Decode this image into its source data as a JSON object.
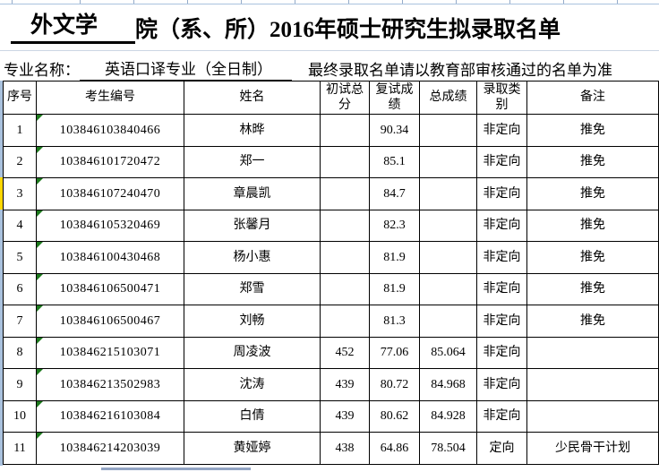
{
  "colors": {
    "grid_black": "#000000",
    "sheet_gridline_blue": "#aac2de",
    "error_indicator_green": "#1d7a1d",
    "left_marker_yellow": "#ffd800",
    "next_row_sliver": "#93a5c4"
  },
  "title": {
    "school_blank": "外文学",
    "rest": "院（系、所）2016年硕士研究生拟录取名单"
  },
  "subtitle": {
    "label": "专业名称：",
    "major": "英语口译专业（全日制）",
    "notice": "最终录取名单请以教育部审核通过的名单为准"
  },
  "table": {
    "headers": {
      "seq": "序号",
      "candidate_no": "考生编号",
      "name": "姓名",
      "initial_score": "初试总分",
      "retest_score": "复试成绩",
      "total_score": "总成绩",
      "admission_category": "录取类别",
      "note": "备注"
    },
    "rows": [
      {
        "seq": "1",
        "no": "103846103840466",
        "name": "林晔",
        "initial": "",
        "retest": "90.34",
        "total": "",
        "category": "非定向",
        "note": "推免"
      },
      {
        "seq": "2",
        "no": "103846101720472",
        "name": "郑一",
        "initial": "",
        "retest": "85.1",
        "total": "",
        "category": "非定向",
        "note": "推免"
      },
      {
        "seq": "3",
        "no": "103846107240470",
        "name": "章晨凯",
        "initial": "",
        "retest": "84.7",
        "total": "",
        "category": "非定向",
        "note": "推免"
      },
      {
        "seq": "4",
        "no": "103846105320469",
        "name": "张馨月",
        "initial": "",
        "retest": "82.3",
        "total": "",
        "category": "非定向",
        "note": "推免"
      },
      {
        "seq": "5",
        "no": "103846100430468",
        "name": "杨小惠",
        "initial": "",
        "retest": "81.9",
        "total": "",
        "category": "非定向",
        "note": "推免"
      },
      {
        "seq": "6",
        "no": "103846106500471",
        "name": "郑雪",
        "initial": "",
        "retest": "81.9",
        "total": "",
        "category": "非定向",
        "note": "推免"
      },
      {
        "seq": "7",
        "no": "103846106500467",
        "name": "刘畅",
        "initial": "",
        "retest": "81.3",
        "total": "",
        "category": "非定向",
        "note": "推免"
      },
      {
        "seq": "8",
        "no": "103846215103071",
        "name": "周凌波",
        "initial": "452",
        "retest": "77.06",
        "total": "85.064",
        "category": "非定向",
        "note": ""
      },
      {
        "seq": "9",
        "no": "103846213502983",
        "name": "沈涛",
        "initial": "439",
        "retest": "80.72",
        "total": "84.968",
        "category": "非定向",
        "note": ""
      },
      {
        "seq": "10",
        "no": "103846216103084",
        "name": "白倩",
        "initial": "439",
        "retest": "80.62",
        "total": "84.928",
        "category": "非定向",
        "note": ""
      },
      {
        "seq": "11",
        "no": "103846214203039",
        "name": "黄娅婷",
        "initial": "438",
        "retest": "64.86",
        "total": "78.504",
        "category": "定向",
        "note": "少民骨干计划"
      }
    ]
  }
}
